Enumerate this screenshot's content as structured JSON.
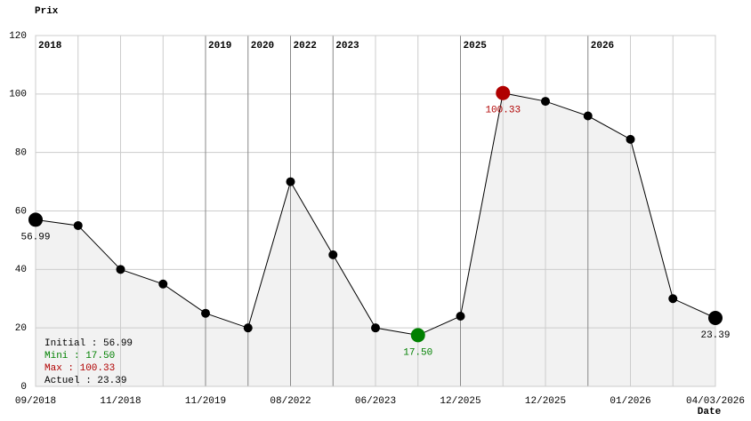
{
  "chart_data": {
    "type": "line",
    "y_label": "Prix",
    "x_label": "Date",
    "categories": [
      "09/2018",
      null,
      "11/2018",
      null,
      "11/2019",
      null,
      "08/2022",
      null,
      "06/2023",
      null,
      "12/2025",
      null,
      "12/2025",
      null,
      "01/2026",
      null,
      "04/03/2026"
    ],
    "year_labels": [
      "2018",
      null,
      null,
      null,
      "2019",
      "2020",
      "2022",
      "2023",
      null,
      null,
      "2025",
      null,
      null,
      "2026",
      null,
      null,
      null
    ],
    "values": [
      56.99,
      55,
      40,
      35,
      25,
      20,
      70,
      45,
      20,
      17.5,
      24,
      100.33,
      97.5,
      92.5,
      84.5,
      30,
      23.39
    ],
    "value_labels": [
      "56.99",
      null,
      null,
      null,
      null,
      null,
      null,
      null,
      null,
      "17.50",
      null,
      "100.33",
      null,
      null,
      null,
      null,
      "23.39"
    ],
    "color": "#000000",
    "min_color": "#008000",
    "max_color": "#b00000",
    "fill": "#f2f2f2",
    "ylim": [
      0,
      120
    ],
    "yticks": [
      0,
      20,
      40,
      60,
      80,
      100,
      120
    ],
    "grid": true,
    "summary": [
      {
        "text": "Initial : 56.99",
        "color": "#000000"
      },
      {
        "text": "Mini : 17.50",
        "color": "#008000"
      },
      {
        "text": "Max : 100.33",
        "color": "#b00000"
      },
      {
        "text": "Actuel : 23.39",
        "color": "#000000"
      }
    ]
  }
}
